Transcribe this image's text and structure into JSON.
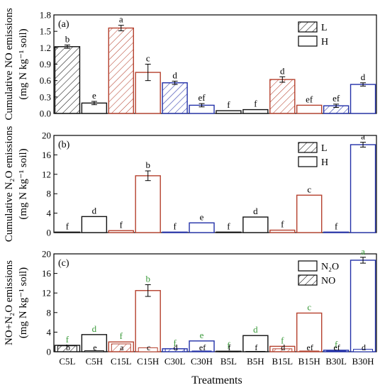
{
  "colors": {
    "black": "#111111",
    "red": "#b5412e",
    "blue": "#2230a8",
    "green": "#3a9a3a"
  },
  "xlabel": "Treatments",
  "categories": [
    "C5L",
    "C5H",
    "C15L",
    "C15H",
    "C30L",
    "C30H",
    "B5L",
    "B5H",
    "B15L",
    "B15H",
    "B30L",
    "B30H"
  ],
  "colorKey": [
    "black",
    "black",
    "red",
    "red",
    "blue",
    "blue",
    "black",
    "black",
    "red",
    "red",
    "blue",
    "blue"
  ],
  "chart_data": [
    {
      "type": "bar",
      "panel": "(a)",
      "ylabel_line1": "Cumulative NO emissions",
      "ylabel_line2": "(mg N kg⁻¹ soil)",
      "ylim": [
        0,
        1.8
      ],
      "yticks": [
        "0.0",
        "0.3",
        "0.6",
        "0.9",
        "1.2",
        "1.5",
        "1.8"
      ],
      "legend": [
        "L",
        "H"
      ],
      "series": [
        {
          "name": "L/H",
          "values": [
            1.22,
            0.19,
            1.56,
            0.75,
            0.56,
            0.15,
            0.05,
            0.07,
            0.62,
            0.15,
            0.14,
            0.53
          ],
          "errors": [
            0.03,
            0.03,
            0.05,
            0.15,
            0.03,
            0.03,
            0,
            0,
            0.05,
            0,
            0.03,
            0.03
          ],
          "hatched": [
            true,
            false,
            true,
            false,
            true,
            false,
            false,
            false,
            true,
            false,
            true,
            false
          ],
          "letters": [
            "b",
            "e",
            "a",
            "c",
            "d",
            "ef",
            "f",
            "f",
            "d",
            "ef",
            "ef",
            "d"
          ]
        }
      ]
    },
    {
      "type": "bar",
      "panel": "(b)",
      "ylabel_line1": "Cumulative N₂O emissions",
      "ylabel_line2": "(mg N kg⁻¹ soil)",
      "ylim": [
        0,
        20
      ],
      "yticks": [
        "0",
        "4",
        "8",
        "12",
        "16",
        "20"
      ],
      "legend": [
        "L",
        "H"
      ],
      "series": [
        {
          "name": "L/H",
          "values": [
            0.1,
            3.3,
            0.4,
            11.7,
            0.1,
            2.0,
            0.1,
            3.2,
            0.5,
            7.7,
            0.1,
            18.1
          ],
          "errors": [
            0,
            0,
            0,
            1.0,
            0,
            0,
            0,
            0,
            0,
            0,
            0,
            0.5
          ],
          "hatched": [
            false,
            false,
            false,
            false,
            false,
            false,
            false,
            false,
            false,
            false,
            false,
            false
          ],
          "letters": [
            "f",
            "d",
            "f",
            "b",
            "f",
            "e",
            "f",
            "d",
            "f",
            "c",
            "f",
            "a"
          ]
        }
      ]
    },
    {
      "type": "bar",
      "panel": "(c)",
      "ylabel_line1": "NO+N₂O emissions",
      "ylabel_line2": "(mg N kg⁻¹ soil)",
      "ylim": [
        0,
        20
      ],
      "yticks": [
        "0",
        "4",
        "8",
        "12",
        "16",
        "20"
      ],
      "legend": [
        "N₂O",
        "NO"
      ],
      "series": [
        {
          "name": "N₂O",
          "values": [
            1.3,
            3.5,
            2.0,
            12.5,
            0.6,
            2.2,
            0.1,
            3.3,
            1.1,
            7.9,
            0.3,
            18.7
          ],
          "errors": [
            0,
            0,
            0,
            1.2,
            0,
            0,
            0,
            0,
            0,
            0,
            0,
            0.6
          ],
          "letters": [
            "f",
            "d",
            "f",
            "b",
            "f",
            "e",
            "f",
            "d",
            "f",
            "c",
            "f",
            "a"
          ]
        },
        {
          "name": "NO",
          "values": [
            1.2,
            0.2,
            1.6,
            0.8,
            0.6,
            0.15,
            0.05,
            0.07,
            0.6,
            0.15,
            0.14,
            0.5
          ],
          "letters": [
            "b",
            "e",
            "a",
            "c",
            "d",
            "ef",
            "f",
            "f",
            "d",
            "ef",
            "ef",
            "d"
          ]
        }
      ]
    }
  ]
}
